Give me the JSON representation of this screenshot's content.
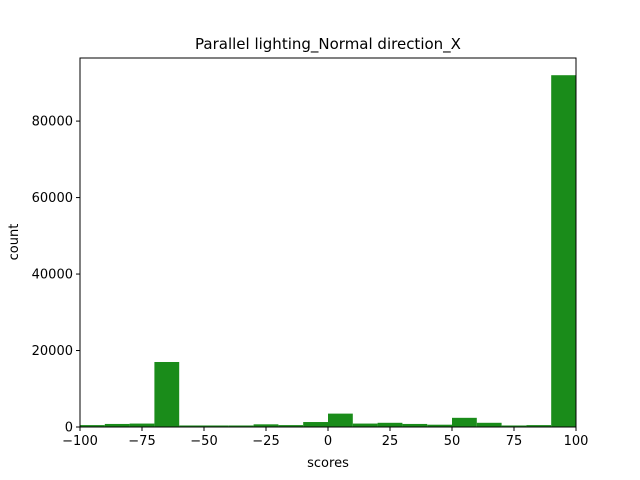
{
  "chart_data": {
    "type": "bar",
    "title": "Parallel lighting_Normal direction_X",
    "xlabel": "scores",
    "ylabel": "count",
    "xlim": [
      -100,
      100
    ],
    "ylim": [
      0,
      96500
    ],
    "bar_color": "#1a8c1a",
    "x_ticks": [
      -100,
      -75,
      -50,
      -25,
      0,
      25,
      50,
      75,
      100
    ],
    "x_tick_labels": [
      "−100",
      "−75",
      "−50",
      "−25",
      "0",
      "25",
      "50",
      "75",
      "100"
    ],
    "y_ticks": [
      0,
      20000,
      40000,
      60000,
      80000
    ],
    "y_tick_labels": [
      "0",
      "20000",
      "40000",
      "60000",
      "80000"
    ],
    "bin_edges": [
      -100,
      -90,
      -80,
      -70,
      -60,
      -50,
      -40,
      -30,
      -20,
      -10,
      0,
      10,
      20,
      30,
      40,
      50,
      60,
      70,
      80,
      90,
      100
    ],
    "values": [
      500,
      800,
      900,
      17000,
      400,
      400,
      400,
      700,
      500,
      1300,
      3500,
      900,
      1100,
      800,
      600,
      2400,
      1100,
      400,
      500,
      92000
    ]
  }
}
